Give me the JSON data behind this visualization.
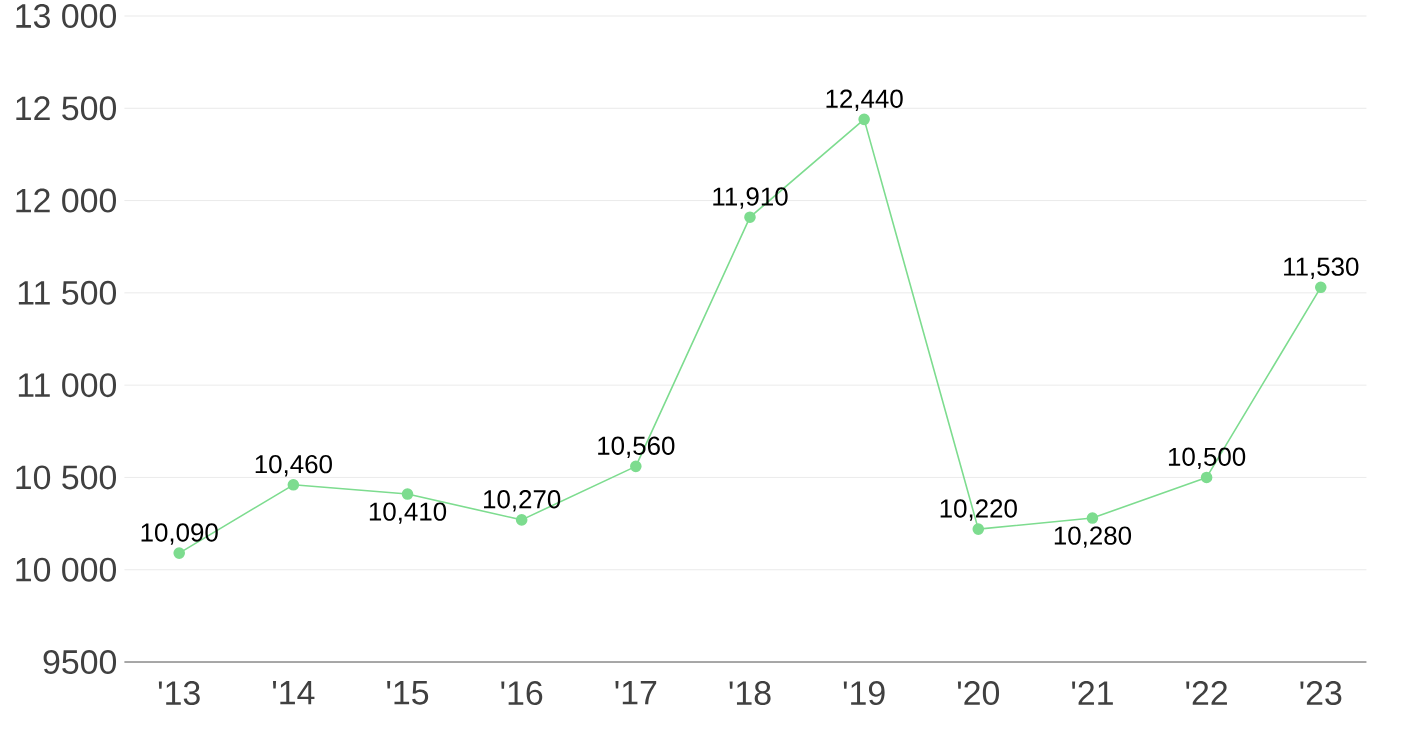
{
  "chart_data": {
    "type": "line",
    "categories": [
      "'13",
      "'14",
      "'15",
      "'16",
      "'17",
      "'18",
      "'19",
      "'20",
      "'21",
      "'22",
      "'23"
    ],
    "values": [
      10090,
      10460,
      10410,
      10270,
      10560,
      11910,
      12440,
      10220,
      10280,
      10500,
      11530
    ],
    "value_labels": [
      "10,090",
      "10,460",
      "10,410",
      "10,270",
      "10,560",
      "11,910",
      "12,440",
      "10,220",
      "10,280",
      "10,500",
      "11,530"
    ],
    "color": "#7ddc8f",
    "marker": "circle",
    "ylim": [
      9500,
      13000
    ],
    "yticks": [
      9500,
      {
        "value": 10000,
        "label": "10 000"
      },
      {
        "value": 10500,
        "label": "10 500"
      },
      {
        "value": 11000,
        "label": "11 000"
      },
      {
        "value": 11500,
        "label": "11 500"
      },
      {
        "value": 12000,
        "label": "12 000"
      },
      {
        "value": 12500,
        "label": "12 500"
      },
      {
        "value": 13000,
        "label": "13 000"
      }
    ],
    "grid": "y"
  }
}
